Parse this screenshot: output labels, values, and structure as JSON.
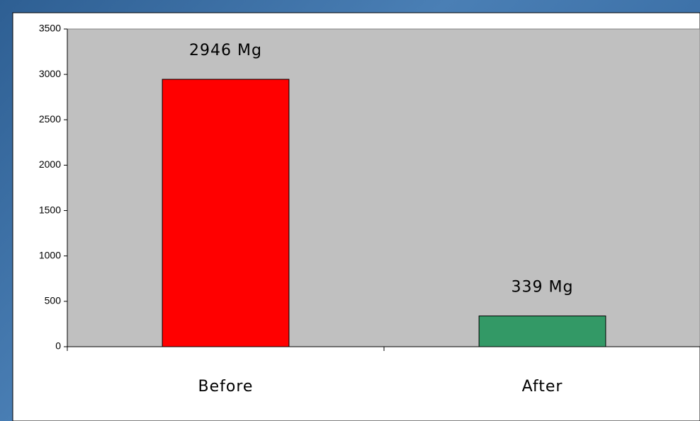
{
  "chart_data": {
    "type": "bar",
    "categories": [
      "Before",
      "After"
    ],
    "values": [
      2946,
      339
    ],
    "value_labels": [
      "2946 Mg",
      "339 Mg"
    ],
    "colors": [
      "#ff0000",
      "#339966"
    ],
    "ylim": [
      0,
      3500
    ],
    "yticks": [
      0,
      500,
      1000,
      1500,
      2000,
      2500,
      3000,
      3500
    ],
    "grid": false
  }
}
